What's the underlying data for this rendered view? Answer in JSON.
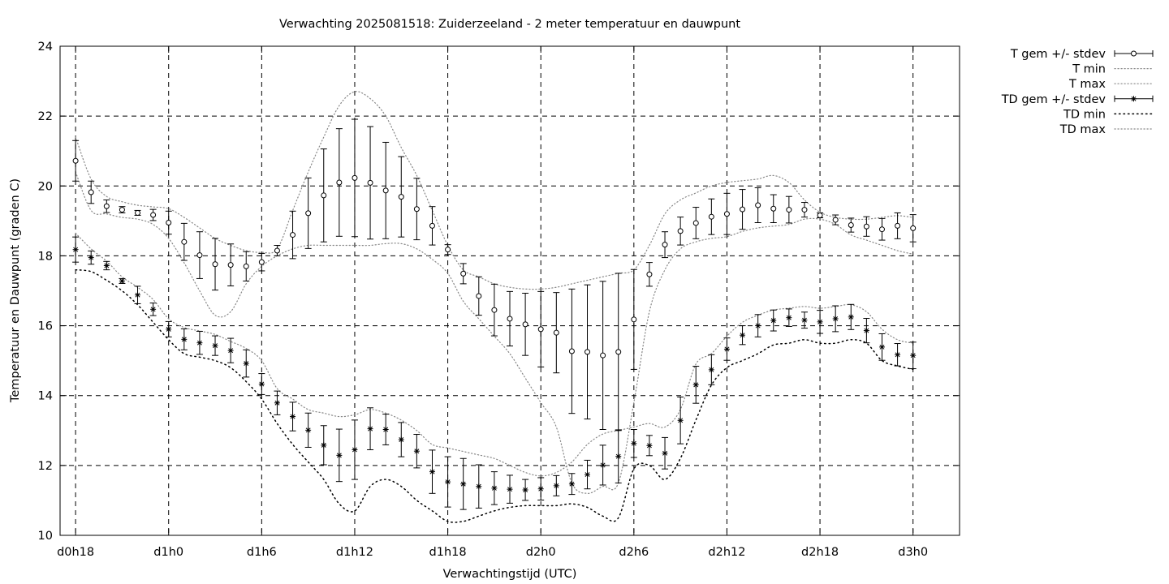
{
  "chart_data": {
    "type": "line",
    "title": "Verwachting 2025081518: Zuiderzeeland - 2 meter temperatuur en dauwpunt",
    "xlabel": "Verwachtingstijd (UTC)",
    "ylabel": "Temperatuur en Dauwpunt (graden C)",
    "ylim": [
      10,
      24
    ],
    "yticks": [
      10,
      12,
      14,
      16,
      18,
      20,
      22,
      24
    ],
    "xlim": [
      -1,
      57
    ],
    "xticks": [
      {
        "x": 0,
        "label": "d0h18"
      },
      {
        "x": 6,
        "label": "d1h0"
      },
      {
        "x": 12,
        "label": "d1h6"
      },
      {
        "x": 18,
        "label": "d1h12"
      },
      {
        "x": 24,
        "label": "d1h18"
      },
      {
        "x": 30,
        "label": "d2h0"
      },
      {
        "x": 36,
        "label": "d2h6"
      },
      {
        "x": 42,
        "label": "d2h12"
      },
      {
        "x": 48,
        "label": "d2h18"
      },
      {
        "x": 54,
        "label": "d3h0"
      }
    ],
    "grid": true,
    "legend_position": "top-right-outside",
    "x": [
      0,
      1,
      2,
      3,
      4,
      5,
      6,
      7,
      8,
      9,
      10,
      11,
      12,
      13,
      14,
      15,
      16,
      17,
      18,
      19,
      20,
      21,
      22,
      23,
      24,
      25,
      26,
      27,
      28,
      29,
      30,
      31,
      32,
      33,
      34,
      35,
      36,
      37,
      38,
      39,
      40,
      41,
      42,
      43,
      44,
      45,
      46,
      47,
      48,
      49,
      50,
      51,
      52,
      53,
      54
    ],
    "series": [
      {
        "name": "T gem +/- stdev",
        "marker": "circle",
        "mean": [
          20.72,
          19.82,
          19.42,
          19.32,
          19.23,
          19.17,
          18.95,
          18.4,
          18.02,
          17.76,
          17.74,
          17.7,
          17.82,
          18.15,
          18.6,
          19.22,
          19.73,
          20.1,
          20.23,
          20.09,
          19.87,
          19.69,
          19.34,
          18.86,
          18.18,
          17.49,
          16.85,
          16.45,
          16.2,
          16.04,
          15.9,
          15.8,
          15.27,
          15.25,
          15.15,
          15.25,
          16.18,
          17.47,
          18.32,
          18.71,
          18.94,
          19.12,
          19.2,
          19.33,
          19.45,
          19.35,
          19.32,
          19.32,
          19.16,
          19.03,
          18.88,
          18.84,
          18.76,
          18.86,
          18.79
        ],
        "stdev": [
          0.58,
          0.32,
          0.18,
          0.09,
          0.07,
          0.16,
          0.33,
          0.53,
          0.67,
          0.74,
          0.6,
          0.42,
          0.25,
          0.15,
          0.68,
          1.01,
          1.33,
          1.54,
          1.68,
          1.61,
          1.38,
          1.15,
          0.88,
          0.55,
          0.14,
          0.29,
          0.55,
          0.74,
          0.78,
          0.89,
          1.08,
          1.15,
          1.78,
          1.92,
          2.12,
          2.25,
          1.43,
          0.34,
          0.37,
          0.4,
          0.45,
          0.51,
          0.59,
          0.57,
          0.5,
          0.4,
          0.38,
          0.21,
          0.07,
          0.14,
          0.2,
          0.28,
          0.31,
          0.37,
          0.39
        ]
      },
      {
        "name": "T min",
        "style": "dotted",
        "values": [
          20.4,
          19.3,
          19.2,
          19.1,
          19.05,
          18.9,
          18.5,
          17.8,
          17.0,
          16.3,
          16.4,
          17.2,
          17.7,
          18.0,
          18.2,
          18.3,
          18.3,
          18.3,
          18.3,
          18.3,
          18.35,
          18.35,
          18.2,
          17.9,
          17.5,
          16.7,
          16.2,
          15.7,
          15.2,
          14.5,
          13.8,
          13.1,
          11.5,
          11.2,
          11.4,
          11.5,
          13.8,
          16.4,
          17.6,
          18.2,
          18.4,
          18.5,
          18.55,
          18.7,
          18.8,
          18.85,
          18.9,
          19.05,
          19.05,
          18.9,
          18.6,
          18.45,
          18.3,
          18.15,
          18.05
        ]
      },
      {
        "name": "T max",
        "style": "dotted",
        "values": [
          21.4,
          20.2,
          19.7,
          19.55,
          19.45,
          19.4,
          19.35,
          19.1,
          18.8,
          18.5,
          18.3,
          18.15,
          18.1,
          18.2,
          19.3,
          20.4,
          21.4,
          22.3,
          22.7,
          22.5,
          22.0,
          21.1,
          20.3,
          19.3,
          18.3,
          17.6,
          17.4,
          17.2,
          17.1,
          17.05,
          17.05,
          17.1,
          17.2,
          17.3,
          17.4,
          17.5,
          17.6,
          18.3,
          19.2,
          19.6,
          19.8,
          20.0,
          20.1,
          20.15,
          20.2,
          20.3,
          20.1,
          19.6,
          19.25,
          19.1,
          19.05,
          19.05,
          19.1,
          19.15,
          19.1
        ]
      },
      {
        "name": "TD gem +/- stdev",
        "marker": "star",
        "mean": [
          18.18,
          17.95,
          17.72,
          17.28,
          16.88,
          16.47,
          15.9,
          15.61,
          15.51,
          15.43,
          15.29,
          14.92,
          14.33,
          13.79,
          13.4,
          13.01,
          12.58,
          12.29,
          12.45,
          13.05,
          13.03,
          12.74,
          12.41,
          11.82,
          11.53,
          11.47,
          11.4,
          11.35,
          11.32,
          11.3,
          11.33,
          11.42,
          11.47,
          11.74,
          12.01,
          12.26,
          12.63,
          12.57,
          12.35,
          13.29,
          14.31,
          14.74,
          15.33,
          15.73,
          16.0,
          16.15,
          16.23,
          16.16,
          16.11,
          16.2,
          16.25,
          15.86,
          15.39,
          15.17,
          15.15
        ],
        "stdev": [
          0.36,
          0.19,
          0.12,
          0.07,
          0.25,
          0.18,
          0.22,
          0.3,
          0.33,
          0.28,
          0.35,
          0.39,
          0.3,
          0.34,
          0.41,
          0.49,
          0.56,
          0.75,
          0.85,
          0.6,
          0.44,
          0.49,
          0.48,
          0.62,
          0.72,
          0.73,
          0.62,
          0.47,
          0.4,
          0.3,
          0.32,
          0.29,
          0.3,
          0.41,
          0.57,
          0.76,
          0.4,
          0.29,
          0.45,
          0.67,
          0.53,
          0.43,
          0.32,
          0.27,
          0.32,
          0.3,
          0.25,
          0.23,
          0.33,
          0.37,
          0.36,
          0.35,
          0.38,
          0.32,
          0.38
        ]
      },
      {
        "name": "TD min",
        "style": "dotted",
        "values": [
          17.6,
          17.55,
          17.3,
          17.0,
          16.6,
          16.1,
          15.6,
          15.2,
          15.1,
          15.0,
          14.8,
          14.4,
          13.9,
          13.2,
          12.6,
          12.1,
          11.6,
          10.9,
          10.7,
          11.4,
          11.6,
          11.4,
          11.0,
          10.7,
          10.4,
          10.4,
          10.55,
          10.7,
          10.8,
          10.85,
          10.85,
          10.85,
          10.9,
          10.8,
          10.55,
          10.5,
          11.9,
          12.0,
          11.6,
          12.2,
          13.3,
          14.3,
          14.8,
          15.0,
          15.2,
          15.45,
          15.5,
          15.6,
          15.5,
          15.5,
          15.6,
          15.5,
          15.0,
          14.85,
          14.75
        ]
      },
      {
        "name": "TD max",
        "style": "dotted",
        "values": [
          18.65,
          18.2,
          17.85,
          17.4,
          17.1,
          16.75,
          16.2,
          15.95,
          15.85,
          15.75,
          15.55,
          15.35,
          15.0,
          14.2,
          13.9,
          13.6,
          13.5,
          13.4,
          13.45,
          13.6,
          13.5,
          13.3,
          13.0,
          12.6,
          12.5,
          12.4,
          12.3,
          12.2,
          12.0,
          11.8,
          11.7,
          11.8,
          12.1,
          12.6,
          12.9,
          13.0,
          13.1,
          13.2,
          13.1,
          13.6,
          14.9,
          15.2,
          15.7,
          16.1,
          16.3,
          16.45,
          16.5,
          16.55,
          16.5,
          16.55,
          16.6,
          16.4,
          15.9,
          15.6,
          15.5
        ]
      }
    ]
  }
}
